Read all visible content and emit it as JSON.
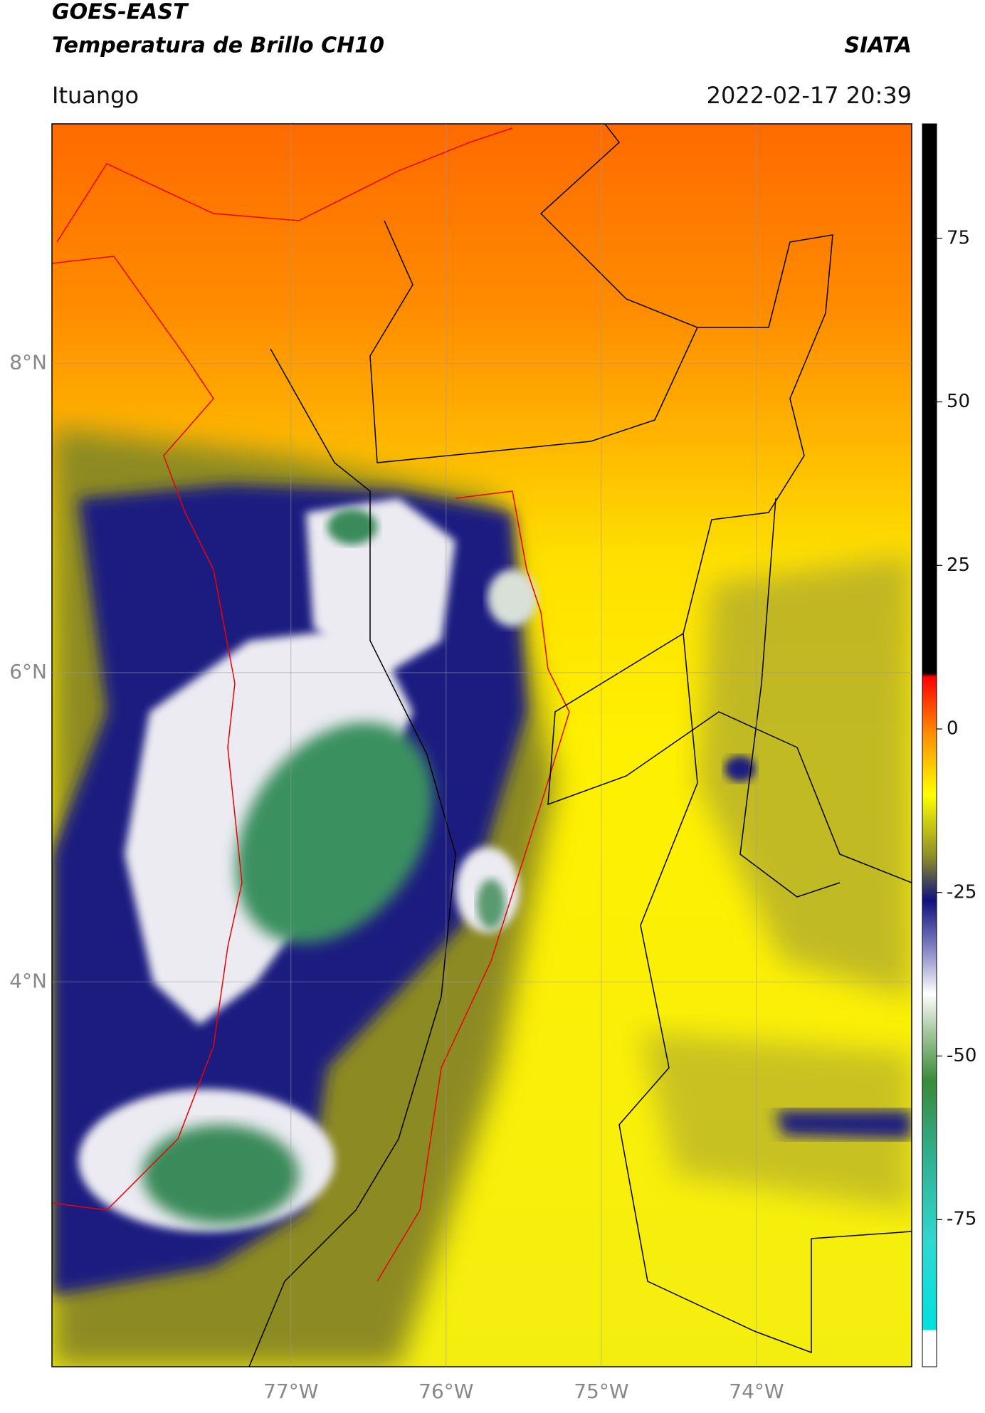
{
  "header": {
    "title_line1": "GOES-EAST",
    "title_line2": "Temperatura de Brillo CH10",
    "org": "SIATA",
    "location": "Ituango",
    "datetime": "2022-02-17 20:39"
  },
  "map": {
    "xlim": [
      -78.54,
      -73.0
    ],
    "ylim": [
      1.51,
      9.55
    ],
    "xticks": [
      {
        "value": -77,
        "label": "77°W"
      },
      {
        "value": -76,
        "label": "76°W"
      },
      {
        "value": -75,
        "label": "75°W"
      },
      {
        "value": -74,
        "label": "74°W"
      }
    ],
    "yticks": [
      {
        "value": 8,
        "label": "8°N"
      },
      {
        "value": 6,
        "label": "6°N"
      },
      {
        "value": 4,
        "label": "4°N"
      }
    ],
    "grid": true
  },
  "colorbar": {
    "clim": [
      -97.5,
      92.5
    ],
    "ticks": [
      75,
      50,
      25,
      0,
      -25,
      -50,
      -75
    ]
  }
}
